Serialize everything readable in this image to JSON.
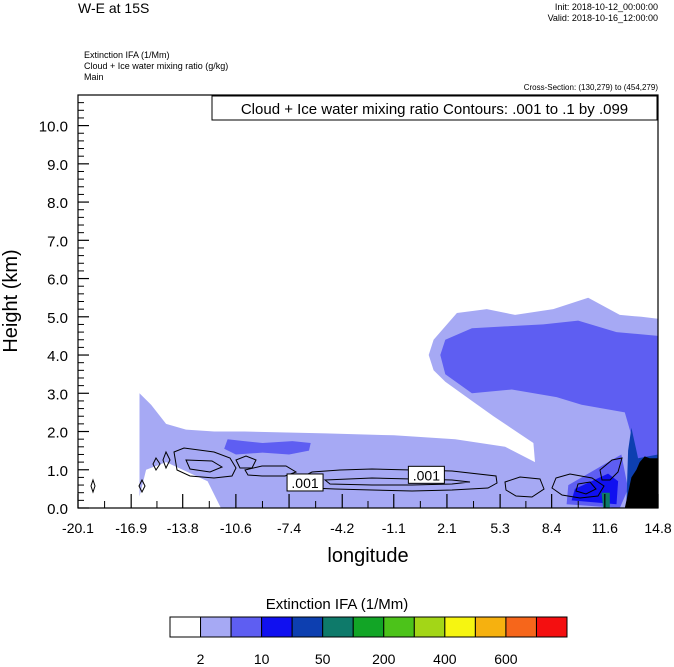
{
  "header": {
    "title": "W-E at 15S",
    "init": "Init: 2018-10-12_00:00:00",
    "valid": "Valid: 2018-10-16_12:00:00",
    "fields": [
      "Extinction IFA   (1/Mm)",
      "Cloud + Ice water mixing ratio   (g/kg)",
      "Main"
    ],
    "cross_section": "Cross-Section: (130,279) to (454,279)"
  },
  "colorbar": {
    "title": "Extinction IFA  (1/Mm)",
    "colors": [
      "#ffffff",
      "#a6a9f4",
      "#5e5ef2",
      "#1010f0",
      "#0d3fb0",
      "#0e7a6a",
      "#12a526",
      "#4cc31a",
      "#a3d617",
      "#f6f511",
      "#f6b10f",
      "#f6661b",
      "#f40f10"
    ],
    "labels": [
      "2",
      "10",
      "50",
      "200",
      "400",
      "600"
    ]
  },
  "chart_data": {
    "type": "heatmap",
    "title": "Cloud + Ice water mixing ratio Contours: .001 to .1 by .099",
    "xlabel": "longitude",
    "ylabel": "Height (km)",
    "xlim": [
      -20.1,
      14.8
    ],
    "ylim": [
      0.0,
      10.8
    ],
    "xticks": [
      "-20.1",
      "-16.9",
      "-13.8",
      "-10.6",
      "-7.4",
      "-4.2",
      "-1.1",
      "2.1",
      "5.3",
      "8.4",
      "11.6",
      "14.8"
    ],
    "yticks": [
      "0.0",
      "1.0",
      "2.0",
      "3.0",
      "4.0",
      "5.0",
      "6.0",
      "7.0",
      "8.0",
      "9.0",
      "10.0"
    ],
    "contour_labels": [
      ".001",
      ".001"
    ],
    "filled_regions": [
      {
        "level": "2-10",
        "color": "#a6a9f4",
        "points": [
          [
            -16.4,
            0.3
          ],
          [
            -16.4,
            3.0
          ],
          [
            -15.7,
            2.7
          ],
          [
            -14.8,
            2.2
          ],
          [
            -13.6,
            2.05
          ],
          [
            -11.9,
            2.0
          ],
          [
            -10.1,
            2.0
          ],
          [
            -5.2,
            1.95
          ],
          [
            -1.1,
            1.9
          ],
          [
            2.6,
            1.8
          ],
          [
            5.6,
            1.6
          ],
          [
            7.4,
            1.2
          ],
          [
            7.3,
            1.7
          ],
          [
            4.9,
            2.4
          ],
          [
            3.6,
            2.8
          ],
          [
            2.0,
            3.3
          ],
          [
            1.3,
            3.6
          ],
          [
            1.0,
            4.0
          ],
          [
            1.3,
            4.4
          ],
          [
            2.7,
            5.1
          ],
          [
            4.5,
            5.2
          ],
          [
            6.2,
            5.05
          ],
          [
            8.5,
            5.2
          ],
          [
            10.6,
            5.5
          ],
          [
            12.5,
            5.05
          ],
          [
            13.8,
            5.0
          ],
          [
            14.8,
            4.95
          ],
          [
            14.8,
            0.0
          ],
          [
            -11.5,
            0.0
          ],
          [
            -12.3,
            0.7
          ],
          [
            -14.8,
            1.2
          ],
          [
            -16.0,
            1.0
          ]
        ]
      },
      {
        "level": "10-50",
        "color": "#5e5ef2",
        "points": [
          [
            1.7,
            4.0
          ],
          [
            2.0,
            4.4
          ],
          [
            3.6,
            4.7
          ],
          [
            5.6,
            4.75
          ],
          [
            7.9,
            4.8
          ],
          [
            10.0,
            4.9
          ],
          [
            12.3,
            4.6
          ],
          [
            14.8,
            4.5
          ],
          [
            14.8,
            0.6
          ],
          [
            13.8,
            1.0
          ],
          [
            12.8,
            2.5
          ],
          [
            10.2,
            2.7
          ],
          [
            8.7,
            2.9
          ],
          [
            6.0,
            3.1
          ],
          [
            3.6,
            3.0
          ],
          [
            2.0,
            3.5
          ]
        ]
      },
      {
        "level": "10-50",
        "color": "#5e5ef2",
        "points": [
          [
            -11.3,
            1.55
          ],
          [
            -11.1,
            1.8
          ],
          [
            -10.1,
            1.75
          ],
          [
            -9.0,
            1.7
          ],
          [
            -7.2,
            1.75
          ],
          [
            -6.1,
            1.7
          ],
          [
            -6.2,
            1.5
          ],
          [
            -7.4,
            1.4
          ],
          [
            -9.0,
            1.45
          ],
          [
            -10.6,
            1.4
          ]
        ]
      },
      {
        "level": "10-50",
        "color": "#5e5ef2",
        "points": [
          [
            9.3,
            0.1
          ],
          [
            9.4,
            0.6
          ],
          [
            10.6,
            0.9
          ],
          [
            11.8,
            1.2
          ],
          [
            12.6,
            1.4
          ],
          [
            13.0,
            0.5
          ],
          [
            12.5,
            0.0
          ]
        ]
      },
      {
        "level": "50-200",
        "color": "#1010f0",
        "points": [
          [
            9.6,
            0.2
          ],
          [
            9.8,
            0.5
          ],
          [
            10.8,
            0.7
          ],
          [
            11.8,
            0.9
          ],
          [
            12.4,
            0.7
          ],
          [
            12.3,
            0.1
          ]
        ]
      },
      {
        "level": "200-400",
        "color": "#0d3fb0",
        "points": [
          [
            12.9,
            0.1
          ],
          [
            13.0,
            1.5
          ],
          [
            13.2,
            2.1
          ],
          [
            13.6,
            1.3
          ],
          [
            14.8,
            1.4
          ],
          [
            14.8,
            0.0
          ]
        ]
      },
      {
        "level": "400-600",
        "color": "#0e7a6a",
        "points": [
          [
            11.5,
            0.0
          ],
          [
            11.4,
            0.4
          ],
          [
            11.9,
            0.4
          ],
          [
            11.9,
            0.0
          ]
        ]
      }
    ],
    "terrain_color": "#000000",
    "terrain": [
      [
        12.8,
        0.0
      ],
      [
        13.0,
        0.4
      ],
      [
        13.2,
        0.8
      ],
      [
        13.5,
        1.0
      ],
      [
        13.7,
        1.2
      ],
      [
        14.0,
        1.35
      ],
      [
        14.3,
        1.3
      ],
      [
        14.8,
        1.3
      ],
      [
        14.8,
        0.0
      ]
    ]
  }
}
